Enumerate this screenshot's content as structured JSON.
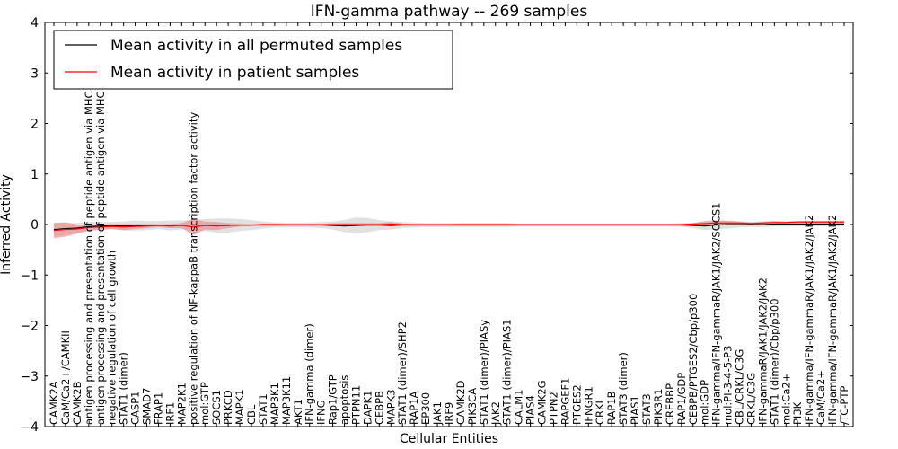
{
  "chart_data": {
    "type": "line",
    "title": "IFN-gamma pathway -- 269 samples",
    "xlabel": "Cellular Entities",
    "ylabel": "Inferred Activity",
    "ylim": [
      -4,
      4
    ],
    "yticks": [
      -4,
      -3,
      -2,
      -1,
      0,
      1,
      2,
      3,
      4
    ],
    "ytick_labels": [
      "−4",
      "−3",
      "−2",
      "−1",
      "0",
      "1",
      "2",
      "3",
      "4"
    ],
    "legend_location": "top-left",
    "categories": [
      "CAMK2A",
      "CaM/Ca2+/CAMKII",
      "CAMK2B",
      "antigen processing and presentation of peptide antigen via MHC class I",
      "antigen processing and presentation of peptide antigen via MHC class II",
      "negative regulation of cell growth",
      "STAT1 (dimer)",
      "CASP1",
      "SMAD7",
      "FRAP1",
      "IRF1",
      "MAP2K1",
      "positive regulation of NF-kappaB transcription factor activity",
      "mol:GTP",
      "SOCS1",
      "PRKCD",
      "MAPK1",
      "CBL",
      "STAT1",
      "MAP3K1",
      "MAP3K11",
      "AKT1",
      "IFN-gamma (dimer)",
      "IFNG",
      "Rap1/GTP",
      "apoptosis",
      "PTPN11",
      "DAPK1",
      "CEBPB",
      "MAPK3",
      "STAT1 (dimer)/SHP2",
      "RAP1A",
      "EP300",
      "JAK1",
      "IRF9",
      "CAMK2D",
      "PIK3CA",
      "STAT1 (dimer)/PIASy",
      "JAK2",
      "STAT1 (dimer)/PIAS1",
      "CALM1",
      "PIAS4",
      "CAMK2G",
      "PTPN2",
      "RAPGEF1",
      "PTGES2",
      "IFNGR1",
      "CRKL",
      "RAP1B",
      "STAT3 (dimer)",
      "PIAS1",
      "STAT3",
      "PIK3R1",
      "CREBBP",
      "RAP1/GDP",
      "CEBPB/PTGES2/Cbp/p300",
      "mol:GDP",
      "IFN-gamma/IFN-gammaR/JAK1/JAK2/SOCS1",
      "mol:PI-3-4-5-P3",
      "CBL/CRKL/C3G",
      "CRKL/C3G",
      "IFN-gammaR/JAK1/JAK2/JAK2",
      "STAT1 (dimer)/Cbp/p300",
      "mol:Ca2+",
      "PI3K",
      "IFN-gamma/IFN-gammaR/JAK1/JAK2/JAK2",
      "CaM/Ca2+",
      "IFN-gamma/IFN-gammaR/JAK1/JAK2/JAK2",
      "/TC-PTP"
    ],
    "series": [
      {
        "name": "Mean activity in all permuted samples",
        "color": "#000000",
        "band_color": "#c8c8c8",
        "values": [
          -0.1,
          -0.08,
          -0.07,
          -0.04,
          -0.03,
          -0.02,
          -0.03,
          -0.02,
          -0.02,
          -0.01,
          -0.02,
          -0.01,
          -0.01,
          -0.01,
          -0.02,
          -0.02,
          -0.01,
          -0.01,
          -0.01,
          -0.01,
          -0.01,
          -0.01,
          -0.01,
          -0.01,
          -0.02,
          -0.03,
          -0.02,
          -0.01,
          -0.01,
          -0.02,
          -0.01,
          -0.01,
          -0.01,
          -0.01,
          -0.01,
          -0.01,
          -0.01,
          -0.01,
          -0.01,
          -0.01,
          -0.01,
          -0.01,
          -0.01,
          -0.01,
          -0.01,
          -0.01,
          -0.01,
          -0.01,
          -0.01,
          -0.01,
          -0.01,
          -0.01,
          -0.01,
          -0.01,
          -0.01,
          -0.02,
          -0.03,
          -0.01,
          0.0,
          0.0,
          0.0,
          0.0,
          0.01,
          0.01,
          0.01,
          0.01,
          0.01,
          0.01,
          0.01
        ],
        "spread": [
          0.14,
          0.12,
          0.1,
          0.09,
          0.08,
          0.07,
          0.09,
          0.1,
          0.09,
          0.08,
          0.1,
          0.09,
          0.1,
          0.12,
          0.14,
          0.14,
          0.12,
          0.1,
          0.07,
          0.05,
          0.05,
          0.05,
          0.05,
          0.06,
          0.08,
          0.12,
          0.16,
          0.14,
          0.1,
          0.08,
          0.06,
          0.05,
          0.04,
          0.04,
          0.04,
          0.04,
          0.04,
          0.04,
          0.04,
          0.04,
          0.03,
          0.03,
          0.03,
          0.03,
          0.03,
          0.03,
          0.03,
          0.03,
          0.03,
          0.03,
          0.03,
          0.03,
          0.03,
          0.03,
          0.04,
          0.05,
          0.08,
          0.09,
          0.08,
          0.06,
          0.05,
          0.05,
          0.05,
          0.05,
          0.05,
          0.05,
          0.05,
          0.05,
          0.05
        ]
      },
      {
        "name": "Mean activity in patient samples",
        "color": "#ff0000",
        "band_color": "#f08080",
        "values": [
          -0.12,
          -0.1,
          -0.09,
          -0.06,
          -0.05,
          -0.04,
          -0.05,
          -0.04,
          -0.03,
          -0.02,
          -0.03,
          -0.02,
          -0.05,
          -0.02,
          -0.03,
          -0.02,
          -0.01,
          -0.01,
          0.0,
          0.0,
          0.0,
          0.0,
          0.0,
          0.0,
          0.0,
          0.0,
          0.0,
          0.0,
          0.0,
          0.01,
          0.0,
          0.0,
          0.0,
          0.0,
          0.0,
          0.0,
          0.0,
          0.0,
          0.0,
          0.0,
          0.0,
          0.0,
          0.0,
          0.0,
          0.0,
          0.0,
          0.0,
          0.0,
          0.0,
          0.0,
          0.0,
          0.0,
          0.0,
          0.0,
          0.0,
          0.01,
          0.02,
          0.03,
          0.03,
          0.03,
          0.02,
          0.03,
          0.04,
          0.04,
          0.05,
          0.05,
          0.05,
          0.05,
          0.05
        ],
        "spread": [
          0.15,
          0.14,
          0.09,
          0.06,
          0.05,
          0.05,
          0.06,
          0.05,
          0.04,
          0.03,
          0.04,
          0.05,
          0.16,
          0.08,
          0.08,
          0.05,
          0.03,
          0.02,
          0.02,
          0.02,
          0.01,
          0.01,
          0.01,
          0.01,
          0.03,
          0.03,
          0.03,
          0.03,
          0.03,
          0.04,
          0.02,
          0.01,
          0.01,
          0.01,
          0.01,
          0.02,
          0.02,
          0.02,
          0.02,
          0.02,
          0.01,
          0.01,
          0.01,
          0.01,
          0.01,
          0.01,
          0.01,
          0.01,
          0.01,
          0.01,
          0.01,
          0.01,
          0.01,
          0.01,
          0.01,
          0.02,
          0.05,
          0.05,
          0.04,
          0.03,
          0.02,
          0.03,
          0.03,
          0.02,
          0.02,
          0.02,
          0.02,
          0.02,
          0.02
        ]
      }
    ]
  }
}
